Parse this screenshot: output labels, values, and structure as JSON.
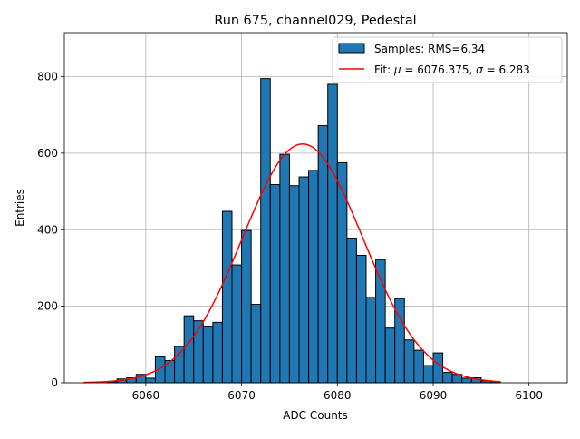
{
  "chart_data": {
    "type": "bar",
    "title": "Run 675, channel029, Pedestal",
    "xlabel": "ADC Counts",
    "ylabel": "Entries",
    "xlim": [
      6051.5,
      6104.0
    ],
    "ylim": [
      0,
      915
    ],
    "xticks": [
      6060,
      6070,
      6080,
      6090,
      6100
    ],
    "yticks": [
      0,
      200,
      400,
      600,
      800
    ],
    "grid": true,
    "legend_position": "top-right",
    "histogram": {
      "name": "Samples: RMS=6.34",
      "color": "#1f77b4",
      "edgecolor": "#000000",
      "bin_width": 1,
      "bin_lefts": [
        6056,
        6057,
        6058,
        6059,
        6060,
        6061,
        6062,
        6063,
        6064,
        6065,
        6066,
        6067,
        6068,
        6069,
        6070,
        6071,
        6072,
        6073,
        6074,
        6075,
        6076,
        6077,
        6078,
        6079,
        6080,
        6081,
        6082,
        6083,
        6084,
        6085,
        6086,
        6087,
        6088,
        6089,
        6090,
        6091,
        6092,
        6093,
        6094,
        6095,
        6096
      ],
      "counts": [
        3,
        10,
        13,
        22,
        12,
        68,
        58,
        95,
        175,
        162,
        148,
        158,
        448,
        308,
        398,
        205,
        795,
        518,
        597,
        515,
        538,
        555,
        672,
        780,
        575,
        378,
        333,
        223,
        322,
        143,
        220,
        112,
        85,
        45,
        78,
        27,
        22,
        12,
        13,
        5,
        3
      ]
    },
    "fit": {
      "name": "Fit: μ = 6076.375, σ = 6.283",
      "name_prefix": "Fit: ",
      "mu_symbol": "μ",
      "mu_text": " = 6076.375, ",
      "sigma_symbol": "σ",
      "sigma_text": " = 6.283",
      "mu": 6076.375,
      "sigma": 6.283,
      "amplitude": 624,
      "x_range": [
        6053.5,
        6097.0
      ],
      "color": "#ff0000"
    }
  }
}
